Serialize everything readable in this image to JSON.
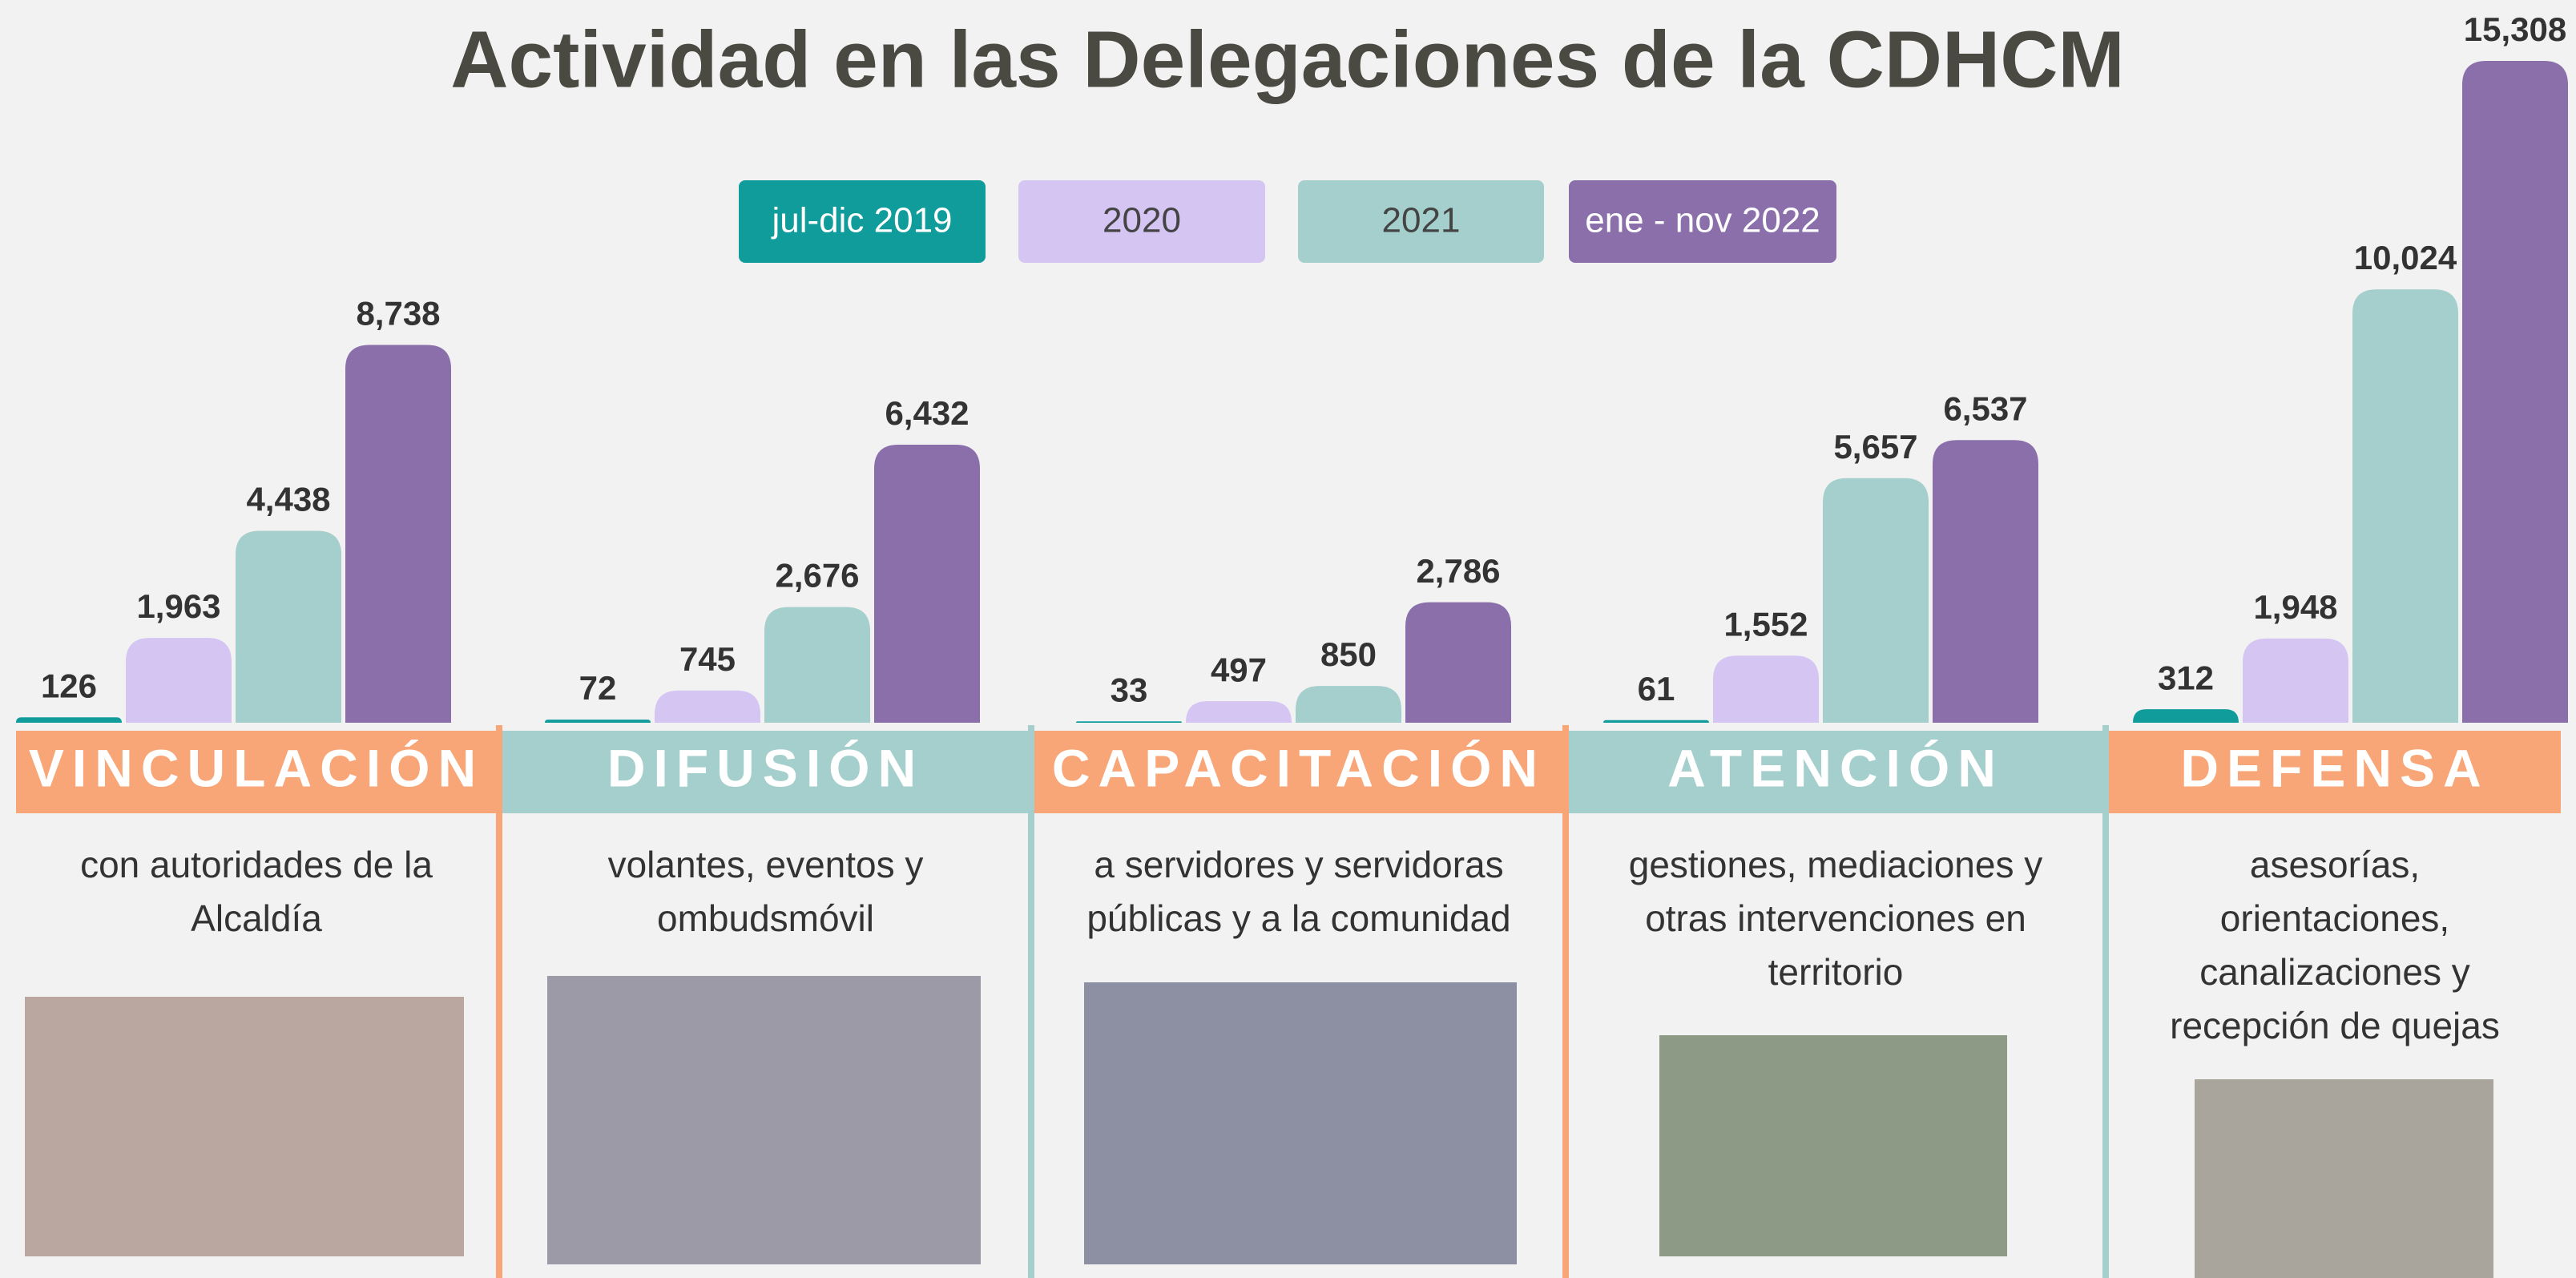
{
  "chart_data": {
    "type": "bar",
    "title": "Actividad en las Delegaciones de la CDHCM",
    "categories": [
      "VINCULACIÓN",
      "DIFUSIÓN",
      "CAPACITACIÓN",
      "ATENCIÓN",
      "DEFENSA"
    ],
    "descriptions": [
      [
        "con autoridades de la",
        "Alcaldía"
      ],
      [
        "volantes, eventos y",
        "ombudsmóvil"
      ],
      [
        "a servidores y servidoras",
        "públicas y a la comunidad"
      ],
      [
        "gestiones, mediaciones y",
        "otras intervenciones en",
        "territorio"
      ],
      [
        "asesorías,",
        "orientaciones,",
        "canalizaciones y",
        "recepción de quejas"
      ]
    ],
    "series": [
      {
        "name": "jul-dic 2019",
        "color": "#119c9c",
        "values": [
          126,
          72,
          33,
          61,
          312
        ],
        "value_labels": [
          "126",
          "72",
          "33",
          "61",
          "312"
        ]
      },
      {
        "name": "2020",
        "color": "#d5c5f3",
        "values": [
          1963,
          745,
          497,
          1552,
          1948
        ],
        "value_labels": [
          "1,963",
          "745",
          "497",
          "1,552",
          "1,948"
        ]
      },
      {
        "name": "2021",
        "color": "#a4cfcc",
        "values": [
          4438,
          2676,
          850,
          5657,
          10024
        ],
        "value_labels": [
          "4,438",
          "2,676",
          "850",
          "5,657",
          "10,024"
        ]
      },
      {
        "name": "ene - nov 2022",
        "color": "#8a6fab",
        "values": [
          8738,
          6432,
          2786,
          6537,
          15308
        ],
        "value_labels": [
          "8,738",
          "6,432",
          "2,786",
          "6,537",
          "15,308"
        ]
      }
    ]
  }
}
